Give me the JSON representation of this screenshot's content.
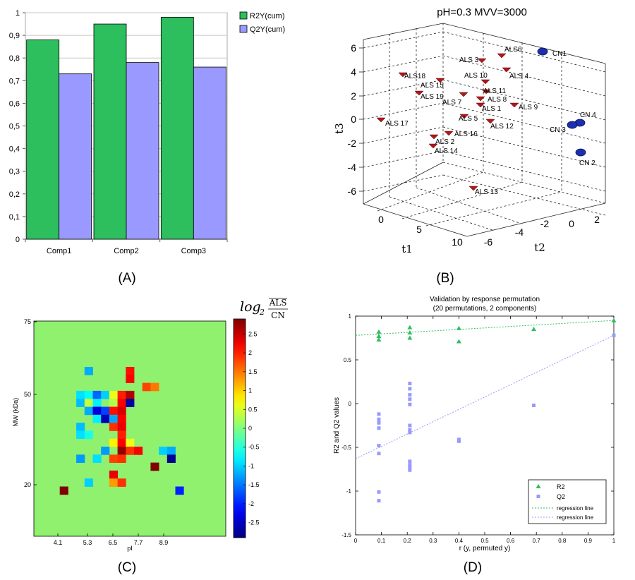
{
  "panel_labels": [
    "(A)",
    "(B)",
    "(C)",
    "(D)"
  ],
  "colors": {
    "r2": "#2dbf5e",
    "q2": "#9999ff",
    "als_marker": "#b01818",
    "cn_marker": "#1c2fb0",
    "heat_bg": "#8ff16e"
  },
  "chart_data": [
    {
      "type": "bar",
      "panel": "A",
      "categories": [
        "Comp1",
        "Comp2",
        "Comp3"
      ],
      "series": [
        {
          "name": "R2Y(cum)",
          "values": [
            0.88,
            0.95,
            0.98
          ]
        },
        {
          "name": "Q2Y(cum)",
          "values": [
            0.73,
            0.78,
            0.76
          ]
        }
      ],
      "yticks": [
        "0",
        "0,1",
        "0,2",
        "0,3",
        "0,4",
        "0,5",
        "0,6",
        "0,7",
        "0,8",
        "0,9",
        "1"
      ],
      "ylim": [
        0,
        1
      ],
      "grid": true,
      "legend": "right"
    },
    {
      "type": "scatter",
      "panel": "B",
      "title": "pH=0.3  MVV=3000",
      "xlabel": "t1",
      "ylabel": "t2",
      "zlabel": "t3",
      "t1_ticks": [
        "0",
        "5",
        "10"
      ],
      "t2_ticks": [
        "-6",
        "-4",
        "-2",
        "0",
        "2"
      ],
      "t3_ticks": [
        "6",
        "4",
        "2",
        "0",
        "-2",
        "-4",
        "-6"
      ],
      "points": [
        {
          "label": "ALS6",
          "group": "ALS"
        },
        {
          "label": "ALS 3",
          "group": "ALS"
        },
        {
          "label": "ALS 4",
          "group": "ALS"
        },
        {
          "label": "ALS18",
          "group": "ALS"
        },
        {
          "label": "ALS 10",
          "group": "ALS"
        },
        {
          "label": "ALS 15",
          "group": "ALS"
        },
        {
          "label": "ALS 11",
          "group": "ALS"
        },
        {
          "label": "ALS 19",
          "group": "ALS"
        },
        {
          "label": "ALS 8",
          "group": "ALS"
        },
        {
          "label": "ALS 7",
          "group": "ALS"
        },
        {
          "label": "ALS 1",
          "group": "ALS"
        },
        {
          "label": "ALS 9",
          "group": "ALS"
        },
        {
          "label": "ALS 5",
          "group": "ALS"
        },
        {
          "label": "ALS 12",
          "group": "ALS"
        },
        {
          "label": "ALS 17",
          "group": "ALS"
        },
        {
          "label": "ALS 16",
          "group": "ALS"
        },
        {
          "label": "ALS 2",
          "group": "ALS"
        },
        {
          "label": "ALS 14",
          "group": "ALS"
        },
        {
          "label": "ALS 13",
          "group": "ALS"
        },
        {
          "label": "CN1",
          "group": "CN"
        },
        {
          "label": "CN 4",
          "group": "CN"
        },
        {
          "label": "CN 3",
          "group": "CN"
        },
        {
          "label": "CN 2",
          "group": "CN"
        }
      ]
    },
    {
      "type": "heatmap",
      "panel": "C",
      "xlabel": "pI",
      "ylabel": "MW (kDa)",
      "xticks": [
        "4.1",
        "5.3",
        "6.5",
        "7.7",
        "8.9"
      ],
      "yticks": [
        "75",
        "50",
        "20"
      ],
      "colorbar_label_prefix": "log",
      "colorbar_label_base": "2",
      "colorbar_numerator": "ALS",
      "colorbar_denominator": "CN",
      "colorbar_ticks": [
        "2.5",
        "2",
        "1.5",
        "1",
        "0.5",
        "0",
        "-0.5",
        "-1",
        "-1.5",
        "-2",
        "-2.5"
      ],
      "clim": [
        -2.9,
        2.9
      ],
      "cells": [
        {
          "col": 4,
          "row": 10,
          "value": -1.2
        },
        {
          "col": 9,
          "row": 10,
          "value": 2.1
        },
        {
          "col": 9,
          "row": 11,
          "value": 2.2
        },
        {
          "col": 11,
          "row": 12,
          "value": 1.8
        },
        {
          "col": 12,
          "row": 12,
          "value": 1.5
        },
        {
          "col": 3,
          "row": 13,
          "value": -0.9
        },
        {
          "col": 4,
          "row": 13,
          "value": -0.7
        },
        {
          "col": 5,
          "row": 13,
          "value": -1.6
        },
        {
          "col": 6,
          "row": 13,
          "value": -1.0
        },
        {
          "col": 7,
          "row": 13,
          "value": 0.6
        },
        {
          "col": 8,
          "row": 13,
          "value": 2.0
        },
        {
          "col": 9,
          "row": 13,
          "value": 2.6
        },
        {
          "col": 3,
          "row": 14,
          "value": -1.1
        },
        {
          "col": 4,
          "row": 14,
          "value": 0.4
        },
        {
          "col": 5,
          "row": 14,
          "value": -0.8
        },
        {
          "col": 7,
          "row": 14,
          "value": 0.3
        },
        {
          "col": 8,
          "row": 14,
          "value": 2.2
        },
        {
          "col": 9,
          "row": 14,
          "value": -2.7
        },
        {
          "col": 4,
          "row": 15,
          "value": -1.2
        },
        {
          "col": 5,
          "row": 15,
          "value": -2.4
        },
        {
          "col": 6,
          "row": 15,
          "value": -1.8
        },
        {
          "col": 7,
          "row": 15,
          "value": 2.1
        },
        {
          "col": 8,
          "row": 15,
          "value": 2.4
        },
        {
          "col": 5,
          "row": 16,
          "value": -0.8
        },
        {
          "col": 6,
          "row": 16,
          "value": -2.6
        },
        {
          "col": 7,
          "row": 16,
          "value": -1.2
        },
        {
          "col": 8,
          "row": 16,
          "value": 2.2
        },
        {
          "col": 3,
          "row": 17,
          "value": -1.1
        },
        {
          "col": 7,
          "row": 17,
          "value": 1.9
        },
        {
          "col": 8,
          "row": 17,
          "value": 2.3
        },
        {
          "col": 3,
          "row": 18,
          "value": -0.9
        },
        {
          "col": 4,
          "row": 18,
          "value": -0.6
        },
        {
          "col": 8,
          "row": 18,
          "value": 2.0
        },
        {
          "col": 7,
          "row": 19,
          "value": 0.8
        },
        {
          "col": 8,
          "row": 19,
          "value": 2.2
        },
        {
          "col": 9,
          "row": 19,
          "value": 0.6
        },
        {
          "col": 6,
          "row": 20,
          "value": -1.3
        },
        {
          "col": 8,
          "row": 20,
          "value": 2.8
        },
        {
          "col": 9,
          "row": 20,
          "value": 1.9
        },
        {
          "col": 10,
          "row": 20,
          "value": 2.2
        },
        {
          "col": 13,
          "row": 20,
          "value": -1.0
        },
        {
          "col": 14,
          "row": 20,
          "value": -1.2
        },
        {
          "col": 3,
          "row": 21,
          "value": -1.3
        },
        {
          "col": 5,
          "row": 21,
          "value": -0.9
        },
        {
          "col": 7,
          "row": 21,
          "value": 1.8
        },
        {
          "col": 8,
          "row": 21,
          "value": 1.9
        },
        {
          "col": 14,
          "row": 21,
          "value": -2.8
        },
        {
          "col": 12,
          "row": 22,
          "value": 2.9
        },
        {
          "col": 7,
          "row": 23,
          "value": 2.3
        },
        {
          "col": 4,
          "row": 24,
          "value": -1.0
        },
        {
          "col": 7,
          "row": 24,
          "value": 1.3
        },
        {
          "col": 8,
          "row": 24,
          "value": 1.9
        },
        {
          "col": 1,
          "row": 25,
          "value": 2.9
        },
        {
          "col": 15,
          "row": 25,
          "value": -2.0
        }
      ]
    },
    {
      "type": "scatter",
      "panel": "D",
      "title": "Validation by response permutation",
      "subtitle": "(20 permutations, 2 components)",
      "xlabel": "r (y, permuted y)",
      "ylabel": "R2 and Q2 values",
      "xlim": [
        0,
        1
      ],
      "ylim": [
        -1.5,
        1
      ],
      "xticks": [
        "0",
        "0.1",
        "0.2",
        "0.3",
        "0.4",
        "0.5",
        "0.6",
        "0.7",
        "0.8",
        "0.9",
        "1"
      ],
      "yticks": [
        "1",
        "0.5",
        "0",
        "-0.5",
        "-1",
        "-1.5"
      ],
      "legend": "bottom-right",
      "series": [
        {
          "name": "R2",
          "points": [
            [
              0.09,
              0.82
            ],
            [
              0.09,
              0.77
            ],
            [
              0.09,
              0.73
            ],
            [
              0.21,
              0.87
            ],
            [
              0.21,
              0.81
            ],
            [
              0.21,
              0.75
            ],
            [
              0.4,
              0.86
            ],
            [
              0.4,
              0.71
            ],
            [
              0.69,
              0.85
            ],
            [
              1.0,
              0.95
            ]
          ]
        },
        {
          "name": "Q2",
          "points": [
            [
              0.09,
              -0.12
            ],
            [
              0.09,
              -0.18
            ],
            [
              0.09,
              -0.22
            ],
            [
              0.09,
              -0.28
            ],
            [
              0.09,
              -0.48
            ],
            [
              0.09,
              -0.57
            ],
            [
              0.09,
              -1.01
            ],
            [
              0.09,
              -1.11
            ],
            [
              0.21,
              0.23
            ],
            [
              0.21,
              0.17
            ],
            [
              0.21,
              0.1
            ],
            [
              0.21,
              0.05
            ],
            [
              0.21,
              -0.01
            ],
            [
              0.21,
              -0.25
            ],
            [
              0.21,
              -0.3
            ],
            [
              0.21,
              -0.33
            ],
            [
              0.21,
              -0.66
            ],
            [
              0.21,
              -0.7
            ],
            [
              0.21,
              -0.73
            ],
            [
              0.21,
              -0.76
            ],
            [
              0.4,
              -0.41
            ],
            [
              0.4,
              -0.43
            ],
            [
              0.69,
              -0.02
            ],
            [
              1.0,
              0.78
            ]
          ]
        },
        {
          "name": "regression line",
          "of": "R2",
          "line": [
            [
              0,
              0.78
            ],
            [
              1,
              0.95
            ]
          ]
        },
        {
          "name": "regression line",
          "of": "Q2",
          "line": [
            [
              0,
              -0.63
            ],
            [
              1,
              0.78
            ]
          ]
        }
      ]
    }
  ]
}
